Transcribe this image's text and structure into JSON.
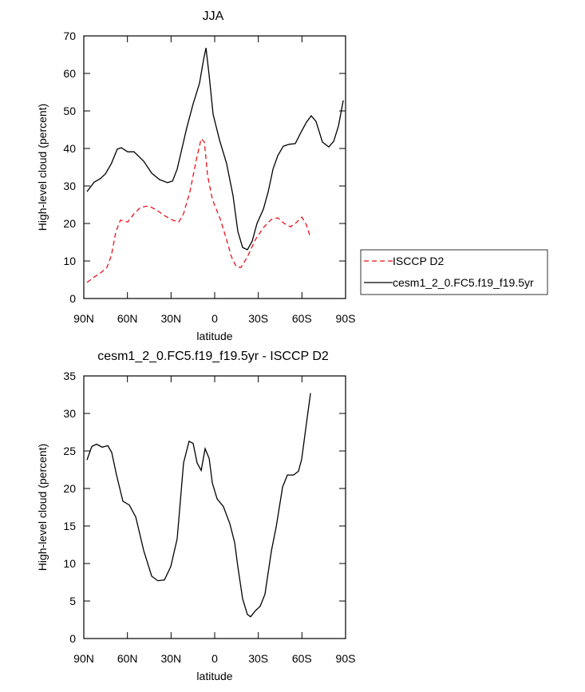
{
  "chart_data": [
    {
      "type": "line",
      "title": "JJA",
      "xlabel": "latitude",
      "ylabel": "High-level cloud (percent)",
      "xlim": [
        90,
        -90
      ],
      "xticks": [
        {
          "value": 90,
          "label": "90N"
        },
        {
          "value": 60,
          "label": "60N"
        },
        {
          "value": 30,
          "label": "30N"
        },
        0,
        {
          "value": -30,
          "label": "30S"
        },
        {
          "value": -60,
          "label": "60S"
        },
        {
          "value": -90,
          "label": "90S"
        }
      ],
      "ylim": [
        0,
        70
      ],
      "yticks": [
        0,
        10,
        20,
        30,
        40,
        50,
        60,
        70
      ],
      "legend": "right",
      "series": [
        {
          "name": "ISCCP D2",
          "color": "#e8121b",
          "dash": "dashed",
          "x": [
            87.8,
            82.9,
            78.5,
            74.1,
            71,
            68,
            64.8,
            59.8,
            55.4,
            51,
            45.5,
            40,
            34.6,
            29,
            24.7,
            21.4,
            17,
            12.6,
            9.3,
            7.1,
            4.9,
            1.6,
            -3.9,
            -8.2,
            -11.5,
            -14.8,
            -18.1,
            -22.5,
            -28,
            -33.5,
            -39,
            -43.4,
            -47.8,
            -52.2,
            -56.6,
            -59.9,
            -63.1,
            -65.9
          ],
          "values": [
            4.3,
            5.7,
            6.8,
            8.3,
            11.5,
            17.7,
            20.9,
            20.4,
            22.6,
            24.3,
            24.7,
            23.6,
            22.1,
            20.9,
            20.4,
            22.6,
            28.5,
            37,
            42.6,
            41.7,
            32.8,
            26.4,
            21.1,
            15.7,
            11.1,
            8.5,
            8.3,
            11.1,
            15.7,
            18.9,
            21.1,
            21.5,
            20,
            19.1,
            20.4,
            21.7,
            19.6,
            16.2
          ]
        },
        {
          "name": "cesm1_2_0.FC5.f19_f19.5yr",
          "color": "#000000",
          "dash": "solid",
          "x": [
            87.8,
            82.9,
            78.5,
            75.2,
            71,
            67,
            64.2,
            59.8,
            55.4,
            48.8,
            43.3,
            37.9,
            32.4,
            29,
            25.8,
            22.5,
            19.2,
            14.8,
            10.4,
            7.7,
            6,
            3.8,
            1.1,
            -3.3,
            -8.2,
            -12.6,
            -15.9,
            -19.2,
            -22.5,
            -25.8,
            -29.1,
            -33.5,
            -36.8,
            -40.1,
            -43.4,
            -47.2,
            -51.1,
            -55.4,
            -59.3,
            -63.1,
            -66.4,
            -69.7,
            -74.1,
            -78.5,
            -81.8,
            -85.1,
            -88.4
          ],
          "values": [
            28.5,
            31,
            32,
            33.2,
            36,
            39.8,
            40.2,
            39.1,
            39.1,
            36.6,
            33.4,
            31.7,
            30.9,
            31.3,
            34.5,
            40,
            45.5,
            51.9,
            57.4,
            63.6,
            66.8,
            59.4,
            49.1,
            42.3,
            36,
            27.4,
            17.9,
            13.6,
            13,
            15.3,
            20,
            23.8,
            28.5,
            34.5,
            38.1,
            40.6,
            41.1,
            41.3,
            44.3,
            47,
            48.7,
            47.2,
            41.7,
            40.4,
            41.9,
            46,
            52.8
          ]
        }
      ]
    },
    {
      "type": "line",
      "title": "cesm1_2_0.FC5.f19_f19.5yr - ISCCP D2",
      "xlabel": "latitude",
      "ylabel": "High-level cloud (percent)",
      "xlim": [
        90,
        -90
      ],
      "xticks": [
        {
          "value": 90,
          "label": "90N"
        },
        {
          "value": 60,
          "label": "60N"
        },
        {
          "value": 30,
          "label": "30N"
        },
        0,
        {
          "value": -30,
          "label": "30S"
        },
        {
          "value": -60,
          "label": "60S"
        },
        {
          "value": -90,
          "label": "90S"
        }
      ],
      "ylim": [
        0,
        35
      ],
      "yticks": [
        0,
        5,
        10,
        15,
        20,
        25,
        30,
        35
      ],
      "series": [
        {
          "color": "#000000",
          "dash": "solid",
          "x": [
            87.8,
            84.5,
            81.2,
            77.4,
            73.5,
            70.8,
            67.5,
            63.1,
            58.7,
            54.3,
            48.8,
            43.3,
            39,
            34.6,
            30.2,
            25.8,
            21.4,
            17.6,
            14.8,
            12.1,
            9.3,
            6.6,
            3.8,
            1.6,
            -1.7,
            -6,
            -10.4,
            -13.7,
            -15.9,
            -19.2,
            -22.5,
            -24.7,
            -28,
            -31.3,
            -34.6,
            -39,
            -42.3,
            -46.7,
            -50,
            -54.3,
            -57.6,
            -59.8,
            -63.1,
            -65.9
          ],
          "values": [
            23.8,
            25.6,
            25.9,
            25.5,
            25.7,
            24.8,
            21.8,
            18.3,
            17.8,
            16.2,
            11.7,
            8.3,
            7.7,
            7.8,
            9.6,
            13.3,
            23.4,
            26.3,
            26,
            23.4,
            22.4,
            25.3,
            24,
            20.7,
            18.6,
            17.6,
            15.3,
            12.8,
            9.6,
            5.3,
            3.2,
            2.9,
            3.7,
            4.3,
            5.9,
            11.7,
            14.9,
            20.2,
            21.8,
            21.8,
            22.3,
            23.9,
            28.7,
            32.7
          ]
        }
      ]
    }
  ]
}
